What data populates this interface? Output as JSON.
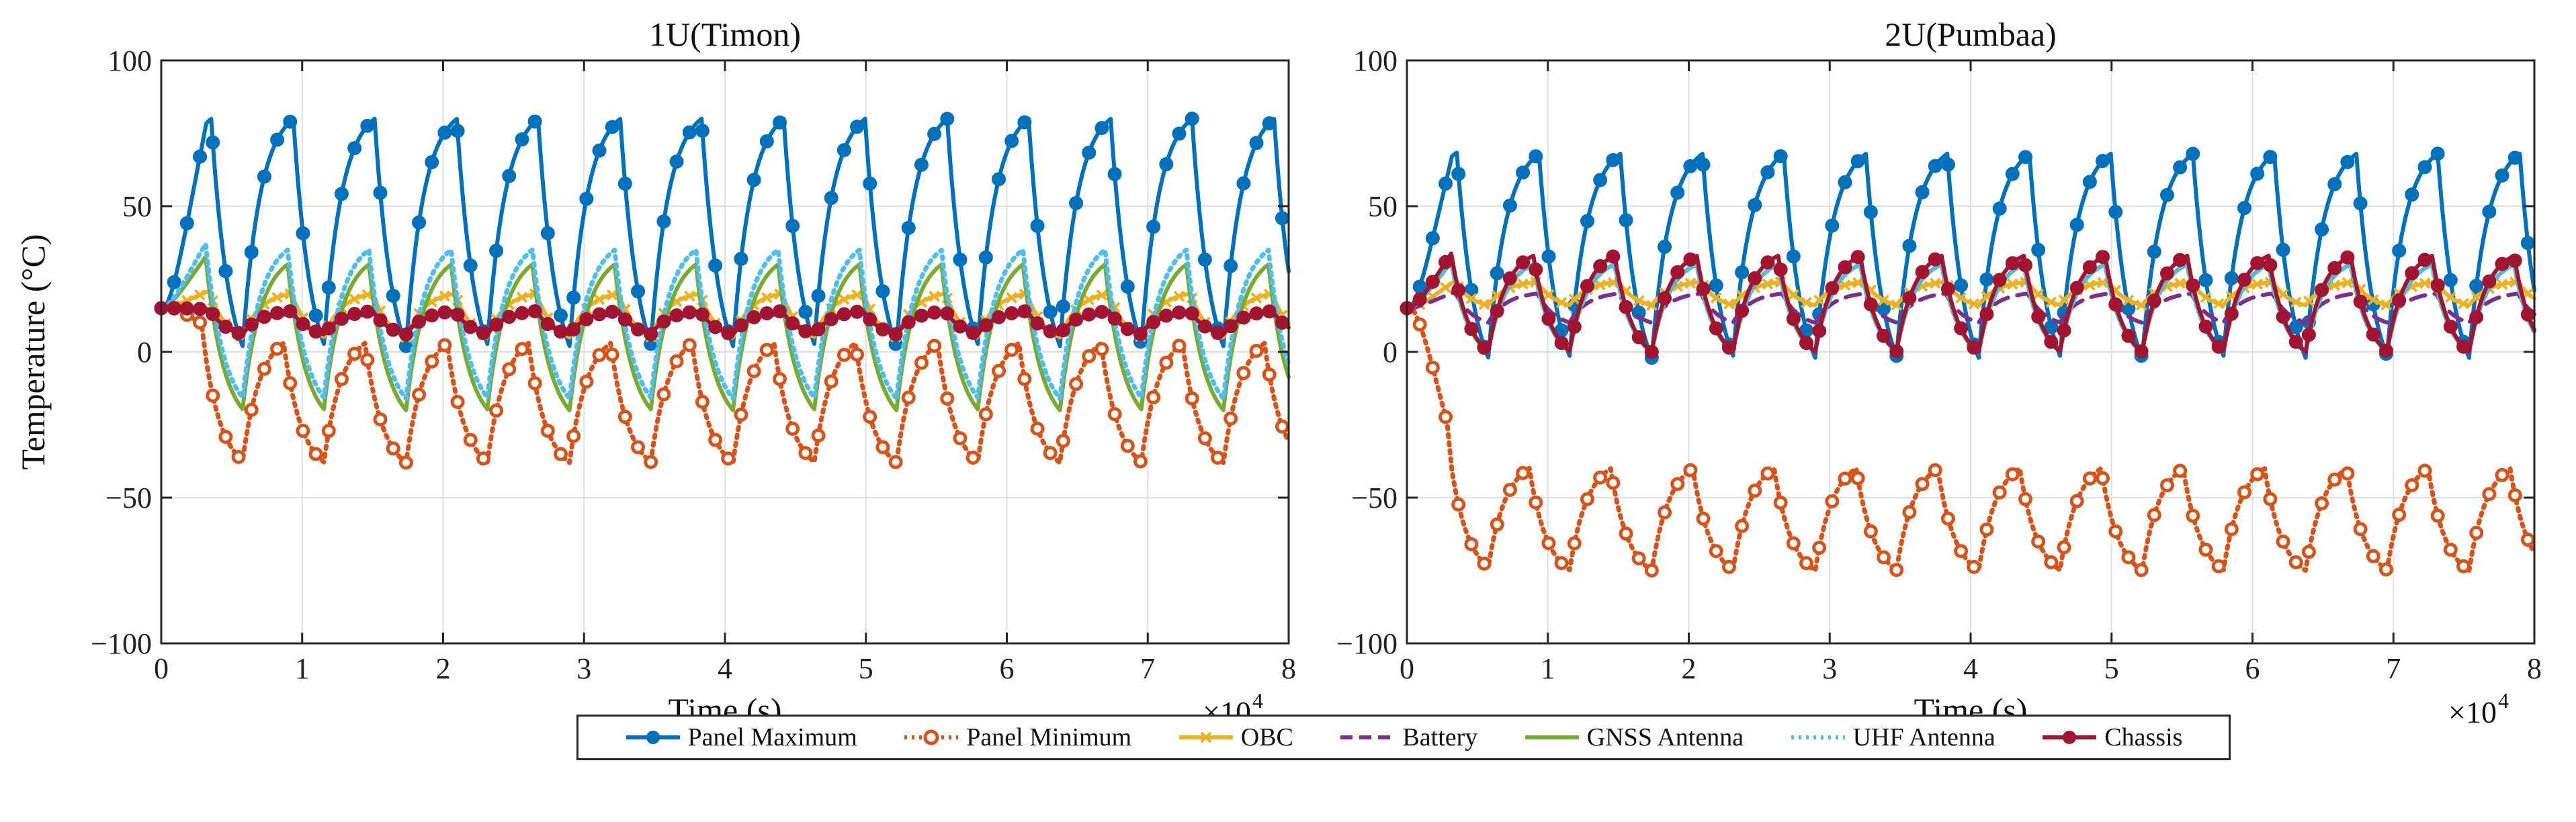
{
  "chart_data": [
    {
      "type": "line",
      "title": "1U(Timon)",
      "xlabel": "Time (s)",
      "ylabel": "Temperature (°C)",
      "xlim": [
        0,
        80000
      ],
      "ylim": [
        -100,
        100
      ],
      "x_ticks": [
        0,
        10000,
        20000,
        30000,
        40000,
        50000,
        60000,
        70000,
        80000
      ],
      "x_tick_labels": [
        "0",
        "1",
        "2",
        "3",
        "4",
        "5",
        "6",
        "7",
        "8"
      ],
      "x_exponent_label": "×10",
      "x_exponent_power": "4",
      "y_ticks": [
        -100,
        -50,
        0,
        50,
        100
      ],
      "y_tick_labels": [
        "−100",
        "−50",
        "0",
        "50",
        "100"
      ],
      "grid": true,
      "orbit_period_s": 5800,
      "series": [
        {
          "name": "Panel Maximum",
          "start": 15,
          "min": 2,
          "max": 80,
          "heat_fraction": 0.62
        },
        {
          "name": "Panel Minimum",
          "start": 15,
          "min": -38,
          "max": 3,
          "heat_fraction": 0.5
        },
        {
          "name": "OBC",
          "start": 15,
          "min": 5,
          "max": 20,
          "heat_fraction": 0.6
        },
        {
          "name": "Battery",
          "start": 15,
          "min": 7,
          "max": 13,
          "heat_fraction": 0.6
        },
        {
          "name": "GNSS Antenna",
          "start": 15,
          "min": -20,
          "max": 30,
          "heat_fraction": 0.55
        },
        {
          "name": "UHF Antenna",
          "start": 15,
          "min": -16,
          "max": 35,
          "heat_fraction": 0.55
        },
        {
          "name": "Chassis",
          "start": 15,
          "min": 6,
          "max": 14,
          "heat_fraction": 0.6
        }
      ]
    },
    {
      "type": "line",
      "title": "2U(Pumbaa)",
      "xlabel": "Time (s)",
      "ylabel": "",
      "xlim": [
        0,
        80000
      ],
      "ylim": [
        -100,
        100
      ],
      "x_ticks": [
        0,
        10000,
        20000,
        30000,
        40000,
        50000,
        60000,
        70000,
        80000
      ],
      "x_tick_labels": [
        "0",
        "1",
        "2",
        "3",
        "4",
        "5",
        "6",
        "7",
        "8"
      ],
      "x_exponent_label": "×10",
      "x_exponent_power": "4",
      "y_ticks": [
        -100,
        -50,
        0,
        50,
        100
      ],
      "y_tick_labels": [
        "−100",
        "−50",
        "0",
        "50",
        "100"
      ],
      "grid": true,
      "orbit_period_s": 5800,
      "series": [
        {
          "name": "Panel Maximum",
          "start": 15,
          "min": -2,
          "max": 68,
          "heat_fraction": 0.62
        },
        {
          "name": "Panel Minimum",
          "start": 15,
          "min": -75,
          "max": -40,
          "heat_fraction": 0.5
        },
        {
          "name": "OBC",
          "start": 15,
          "min": 16,
          "max": 24,
          "heat_fraction": 0.6
        },
        {
          "name": "Battery",
          "start": 15,
          "min": 10,
          "max": 20,
          "heat_fraction": 0.6
        },
        {
          "name": "GNSS Antenna",
          "start": 15,
          "min": 0,
          "max": 30,
          "heat_fraction": 0.55
        },
        {
          "name": "UHF Antenna",
          "start": 15,
          "min": 0,
          "max": 30,
          "heat_fraction": 0.55
        },
        {
          "name": "Chassis",
          "start": 15,
          "min": 0,
          "max": 33,
          "heat_fraction": 0.55
        }
      ]
    }
  ],
  "legend": [
    {
      "name": "Panel Maximum",
      "color": "#0072BD",
      "dash": "solid",
      "marker": "circle"
    },
    {
      "name": "Panel Minimum",
      "color": "#D95319",
      "dash": "dotted",
      "marker": "circle-open"
    },
    {
      "name": "OBC",
      "color": "#EDB120",
      "dash": "solid",
      "marker": "x"
    },
    {
      "name": "Battery",
      "color": "#7E2F8E",
      "dash": "dashed",
      "marker": "none"
    },
    {
      "name": "GNSS Antenna",
      "color": "#77AC30",
      "dash": "solid",
      "marker": "none"
    },
    {
      "name": "UHF Antenna",
      "color": "#4DBEEE",
      "dash": "dotted",
      "marker": "none"
    },
    {
      "name": "Chassis",
      "color": "#A2142F",
      "dash": "solid",
      "marker": "circle"
    }
  ]
}
